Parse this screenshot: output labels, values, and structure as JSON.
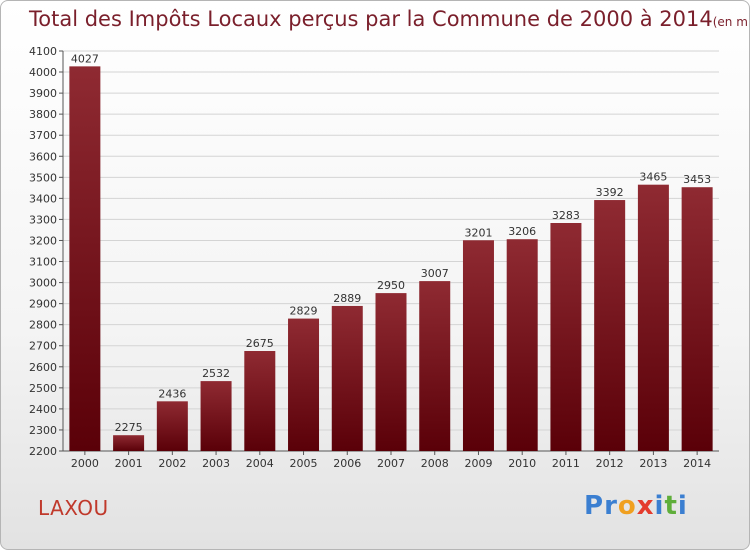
{
  "title": "Total des Impôts Locaux perçus par la Commune de 2000 à 2014",
  "unit_note": "(en milliers d'€)",
  "place": "LAXOU",
  "logo": {
    "letters": [
      "P",
      "r",
      "o",
      "x",
      "i",
      "t",
      "i"
    ],
    "colors": [
      "#3b7fd1",
      "#3b7fd1",
      "#f0a020",
      "#e43b2d",
      "#3b7fd1",
      "#5fae3a",
      "#3b7fd1"
    ]
  },
  "colors": {
    "bar_top": "#8f2a32",
    "bar_bottom": "#5a0008",
    "title": "#7a1f2b",
    "place": "#c0392b"
  },
  "chart_data": {
    "type": "bar",
    "categories": [
      "2000",
      "2001",
      "2002",
      "2003",
      "2004",
      "2005",
      "2006",
      "2007",
      "2008",
      "2009",
      "2010",
      "2011",
      "2012",
      "2013",
      "2014"
    ],
    "values": [
      4027,
      2275,
      2436,
      2532,
      2675,
      2829,
      2889,
      2950,
      3007,
      3201,
      3206,
      3283,
      3392,
      3465,
      3453
    ],
    "ylim": [
      2200,
      4100
    ],
    "yticks": [
      2200,
      2300,
      2400,
      2500,
      2600,
      2700,
      2800,
      2900,
      3000,
      3100,
      3200,
      3300,
      3400,
      3500,
      3600,
      3700,
      3800,
      3900,
      4000,
      4100
    ],
    "grid": true,
    "xlabel": "",
    "ylabel": ""
  }
}
